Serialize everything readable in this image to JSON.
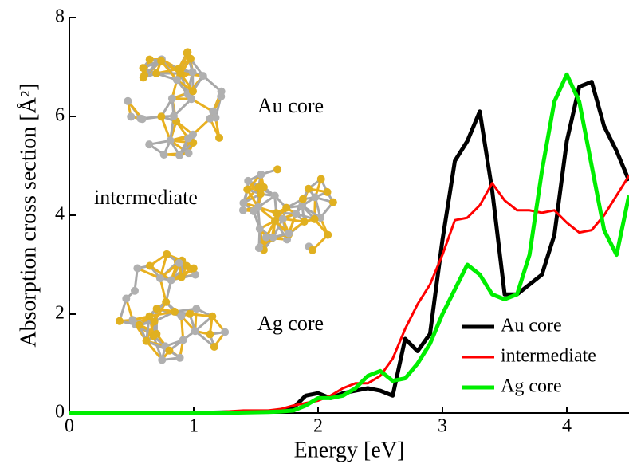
{
  "chart_data": {
    "type": "line",
    "xlabel": "Energy [eV]",
    "ylabel": "Absorption cross section [Å²]",
    "x": [
      0,
      0.5,
      1,
      1.2,
      1.4,
      1.6,
      1.7,
      1.8,
      1.9,
      2.0,
      2.1,
      2.2,
      2.3,
      2.4,
      2.5,
      2.6,
      2.7,
      2.8,
      2.9,
      3.0,
      3.1,
      3.2,
      3.3,
      3.4,
      3.5,
      3.6,
      3.7,
      3.8,
      3.9,
      4.0,
      4.1,
      4.2,
      4.3,
      4.4,
      4.5
    ],
    "series": [
      {
        "name": "Au core",
        "color": "#000000",
        "values": [
          0,
          0,
          0,
          0.01,
          0.02,
          0.03,
          0.03,
          0.1,
          0.35,
          0.4,
          0.3,
          0.4,
          0.45,
          0.5,
          0.45,
          0.35,
          1.5,
          1.25,
          1.6,
          3.5,
          5.1,
          5.5,
          6.1,
          4.5,
          2.4,
          2.4,
          2.6,
          2.8,
          3.6,
          5.5,
          6.6,
          6.7,
          5.8,
          5.3,
          4.7
        ]
      },
      {
        "name": "intermediate",
        "color": "#ff0000",
        "values": [
          0,
          0,
          0.01,
          0.02,
          0.05,
          0.05,
          0.08,
          0.15,
          0.2,
          0.25,
          0.35,
          0.5,
          0.6,
          0.6,
          0.75,
          1.1,
          1.7,
          2.2,
          2.6,
          3.2,
          3.9,
          3.95,
          4.2,
          4.65,
          4.3,
          4.1,
          4.1,
          4.05,
          4.1,
          3.85,
          3.65,
          3.7,
          4.0,
          4.4,
          4.8
        ]
      },
      {
        "name": "Ag core",
        "color": "#00ee00",
        "values": [
          0,
          0,
          0,
          0,
          0.01,
          0.02,
          0.03,
          0.05,
          0.15,
          0.3,
          0.3,
          0.35,
          0.5,
          0.75,
          0.85,
          0.65,
          0.7,
          1.0,
          1.4,
          2.0,
          2.5,
          3.0,
          2.8,
          2.4,
          2.3,
          2.4,
          3.2,
          4.9,
          6.3,
          6.85,
          6.3,
          5.0,
          3.7,
          3.2,
          4.4
        ]
      }
    ],
    "xlim": [
      0,
      4.5
    ],
    "xticks": [
      0,
      1,
      2,
      3,
      4
    ],
    "ylim": [
      0,
      8
    ],
    "yticks": [
      0,
      2,
      4,
      6,
      8
    ],
    "legend": "lower right",
    "annotations": [
      "Au core",
      "intermediate",
      "Ag core"
    ]
  }
}
